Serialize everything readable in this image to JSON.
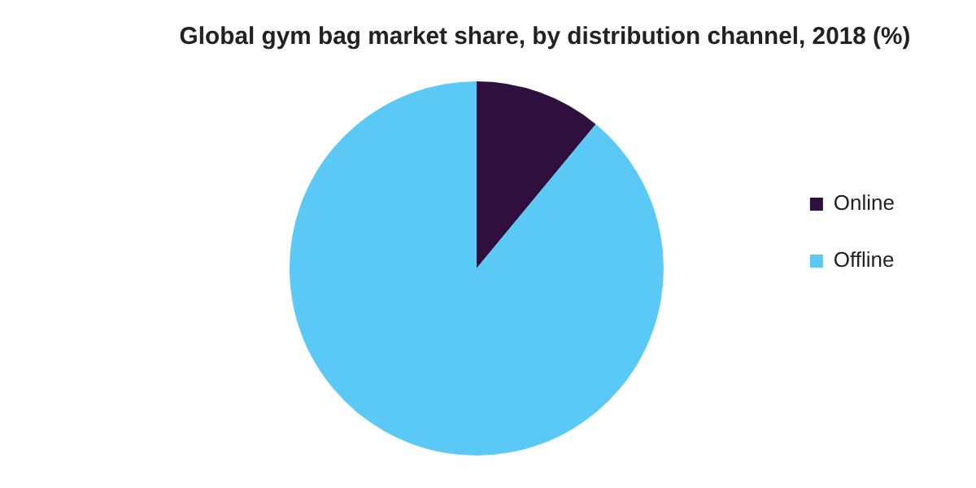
{
  "chart_data": {
    "type": "pie",
    "title": "Global gym bag market share, by distribution channel, 2018 (%)",
    "categories": [
      "Online",
      "Offline"
    ],
    "values": [
      11,
      89
    ],
    "colors": [
      "#2e0f3e",
      "#5bc9f5"
    ],
    "legend": "right"
  }
}
